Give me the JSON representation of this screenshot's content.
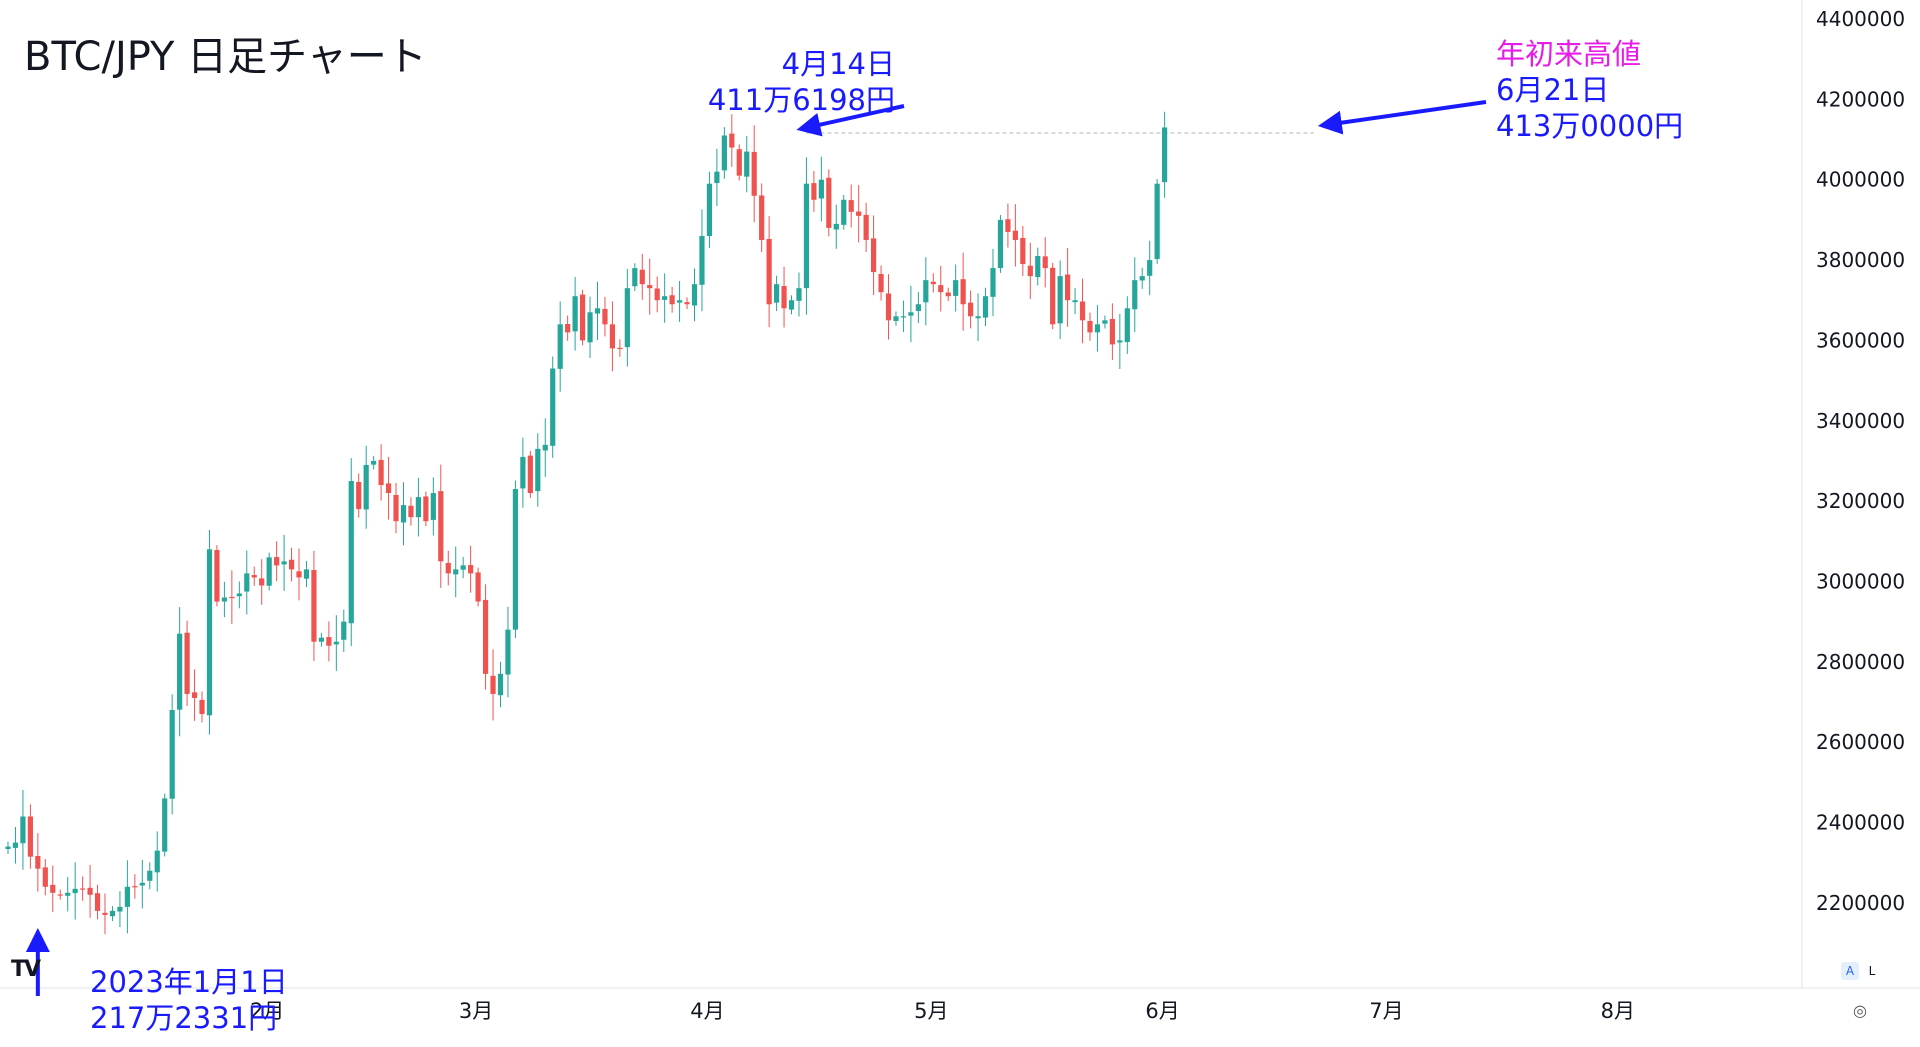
{
  "title": "BTC/JPY 日足チャート",
  "annotations": {
    "low": {
      "line1": "2023年1月1日",
      "line2": "217万2331円"
    },
    "april_high": {
      "line1": "4月14日",
      "line2": "411万6198円"
    },
    "ytd_high": {
      "line1": "年初来高値",
      "line2": "6月21日",
      "line3": "413万0000円"
    }
  },
  "controls": {
    "auto": "A",
    "log": "L"
  },
  "logo": "TV",
  "settings_icon": "gear-icon",
  "colors": {
    "up": "#26a69a",
    "down": "#ef5350",
    "annotation": "#1a1aff",
    "highlight": "#e81ce8",
    "guide": "#b2b5be"
  },
  "chart_data": {
    "type": "candlestick",
    "title": "BTC/JPY 日足チャート",
    "y_ticks": [
      "2200000",
      "2400000",
      "2600000",
      "2800000",
      "3000000",
      "3200000",
      "3400000",
      "3600000",
      "3800000",
      "4000000",
      "4200000",
      "4400000"
    ],
    "x_ticks": [
      "2月",
      "3月",
      "4月",
      "5月",
      "6月",
      "7月",
      "8月"
    ],
    "ylim": [
      2000000,
      4450000
    ],
    "xlim": [
      "2022-12-28",
      "2023-08-31"
    ],
    "guide_line": {
      "from": "2023-04-14",
      "to": "2023-06-21",
      "value": 4116198
    },
    "marked_points": [
      {
        "date": "2023-01-01",
        "value": 2172331
      },
      {
        "date": "2023-04-14",
        "value": 4116198
      },
      {
        "date": "2023-06-21",
        "value": 4130000
      }
    ],
    "closes": [
      2340000,
      2350000,
      2415000,
      2315000,
      2285000,
      2240000,
      2225000,
      2220000,
      2225000,
      2235000,
      2235000,
      2220000,
      2180000,
      2170000,
      2180000,
      2190000,
      2240000,
      2240000,
      2250000,
      2280000,
      2330000,
      2460000,
      2680000,
      2870000,
      2720000,
      2710000,
      2670000,
      3080000,
      2950000,
      2960000,
      2960000,
      2970000,
      3020000,
      3010000,
      2990000,
      3060000,
      3040000,
      3050000,
      3030000,
      3010000,
      3030000,
      2850000,
      2860000,
      2840000,
      2850000,
      2900000,
      3250000,
      3180000,
      3290000,
      3300000,
      3240000,
      3220000,
      3150000,
      3190000,
      3160000,
      3210000,
      3150000,
      3220000,
      3050000,
      3020000,
      3030000,
      3040000,
      3020000,
      2950000,
      2770000,
      2720000,
      2770000,
      2880000,
      3230000,
      3310000,
      3220000,
      3330000,
      3340000,
      3530000,
      3640000,
      3620000,
      3710000,
      3600000,
      3670000,
      3680000,
      3640000,
      3580000,
      3580000,
      3730000,
      3780000,
      3740000,
      3730000,
      3700000,
      3710000,
      3690000,
      3700000,
      3690000,
      3740000,
      3860000,
      3990000,
      4020000,
      4110000,
      4080000,
      4010000,
      4070000,
      3960000,
      3850000,
      3690000,
      3740000,
      3680000,
      3700000,
      3730000,
      3990000,
      3950000,
      4000000,
      3880000,
      3890000,
      3950000,
      3920000,
      3910000,
      3850000,
      3770000,
      3720000,
      3650000,
      3660000,
      3660000,
      3670000,
      3690000,
      3750000,
      3740000,
      3720000,
      3710000,
      3750000,
      3690000,
      3660000,
      3660000,
      3710000,
      3780000,
      3900000,
      3870000,
      3850000,
      3790000,
      3760000,
      3810000,
      3780000,
      3640000,
      3760000,
      3700000,
      3700000,
      3650000,
      3620000,
      3640000,
      3650000,
      3590000,
      3600000,
      3680000,
      3750000,
      3760000,
      3800000,
      3990000,
      4130000
    ]
  }
}
